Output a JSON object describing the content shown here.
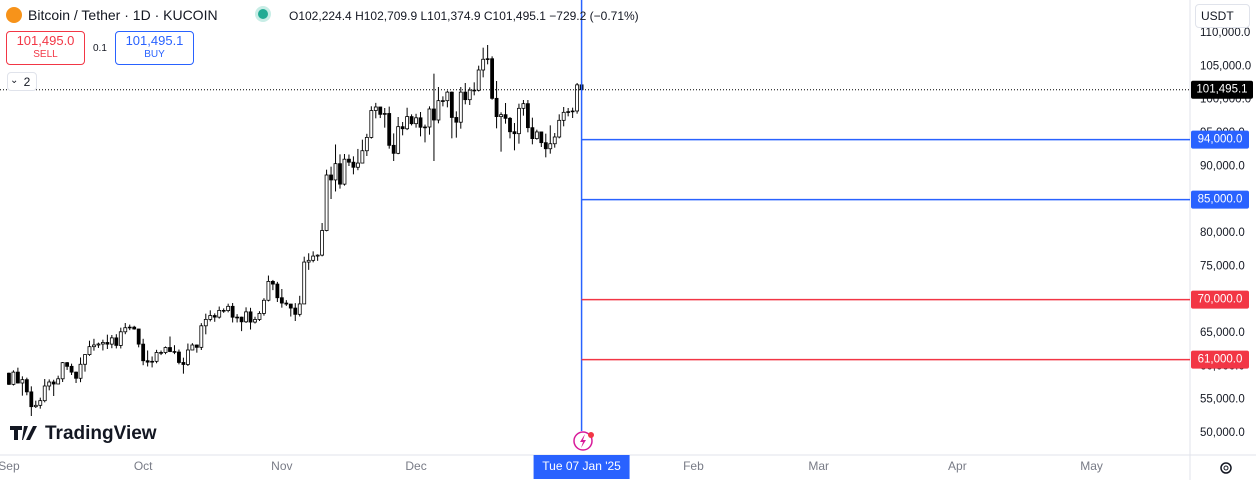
{
  "header": {
    "symbol": "Bitcoin / Tether · 1D · KUCOIN",
    "open": "O102,224.4",
    "high": "H102,709.9",
    "low": "L101,374.9",
    "close": "C101,495.1",
    "change": "−729.2 (−0.71%)",
    "sell_price": "101,495.0",
    "sell": "SELL",
    "quantity": "0.1",
    "buy_price": "101,495.1",
    "buy": "BUY",
    "indicators": "2",
    "currency": "USDT",
    "logo": "TradingView"
  },
  "chart_data": {
    "type": "candlestick",
    "up_color": "#ffffff",
    "down_color": "#000000",
    "wick_color": "#000000",
    "x": [
      "2024-09-01",
      "2024-09-02",
      "2024-09-03",
      "2024-09-04",
      "2024-09-05",
      "2024-09-06",
      "2024-09-07",
      "2024-09-08",
      "2024-09-09",
      "2024-09-10",
      "2024-09-11",
      "2024-09-12",
      "2024-09-13",
      "2024-09-14",
      "2024-09-15",
      "2024-09-16",
      "2024-09-17",
      "2024-09-18",
      "2024-09-19",
      "2024-09-20",
      "2024-09-21",
      "2024-09-22",
      "2024-09-23",
      "2024-09-24",
      "2024-09-25",
      "2024-09-26",
      "2024-09-27",
      "2024-09-28",
      "2024-09-29",
      "2024-09-30",
      "2024-10-01",
      "2024-10-02",
      "2024-10-03",
      "2024-10-04",
      "2024-10-05",
      "2024-10-06",
      "2024-10-07",
      "2024-10-08",
      "2024-10-09",
      "2024-10-10",
      "2024-10-11",
      "2024-10-12",
      "2024-10-13",
      "2024-10-14",
      "2024-10-15",
      "2024-10-16",
      "2024-10-17",
      "2024-10-18",
      "2024-10-19",
      "2024-10-20",
      "2024-10-21",
      "2024-10-22",
      "2024-10-23",
      "2024-10-24",
      "2024-10-25",
      "2024-10-26",
      "2024-10-27",
      "2024-10-28",
      "2024-10-29",
      "2024-10-30",
      "2024-10-31",
      "2024-11-01",
      "2024-11-02",
      "2024-11-03",
      "2024-11-04",
      "2024-11-05",
      "2024-11-06",
      "2024-11-07",
      "2024-11-08",
      "2024-11-09",
      "2024-11-10",
      "2024-11-11",
      "2024-11-12",
      "2024-11-13",
      "2024-11-14",
      "2024-11-15",
      "2024-11-16",
      "2024-11-17",
      "2024-11-18",
      "2024-11-19",
      "2024-11-20",
      "2024-11-21",
      "2024-11-22",
      "2024-11-23",
      "2024-11-24",
      "2024-11-25",
      "2024-11-26",
      "2024-11-27",
      "2024-11-28",
      "2024-11-29",
      "2024-11-30",
      "2024-12-01",
      "2024-12-02",
      "2024-12-03",
      "2024-12-04",
      "2024-12-05",
      "2024-12-06",
      "2024-12-07",
      "2024-12-08",
      "2024-12-09",
      "2024-12-10",
      "2024-12-11",
      "2024-12-12",
      "2024-12-13",
      "2024-12-14",
      "2024-12-15",
      "2024-12-16",
      "2024-12-17",
      "2024-12-18",
      "2024-12-19",
      "2024-12-20",
      "2024-12-21",
      "2024-12-22",
      "2024-12-23",
      "2024-12-24",
      "2024-12-25",
      "2024-12-26",
      "2024-12-27",
      "2024-12-28",
      "2024-12-29",
      "2024-12-30",
      "2024-12-31",
      "2025-01-01",
      "2025-01-02",
      "2025-01-03",
      "2025-01-04",
      "2025-01-05",
      "2025-01-06",
      "2025-01-07"
    ],
    "open": [
      58970,
      57300,
      59130,
      57500,
      58000,
      56170,
      53950,
      54150,
      54850,
      57050,
      57650,
      57350,
      58130,
      60550,
      60000,
      59130,
      58210,
      60310,
      61760,
      62950,
      63200,
      63350,
      63580,
      63330,
      64270,
      63140,
      65180,
      65790,
      65880,
      65600,
      63330,
      60840,
      60630,
      60750,
      62080,
      62070,
      62820,
      62220,
      62140,
      60580,
      60280,
      62450,
      63200,
      62850,
      66080,
      67040,
      67620,
      67380,
      68390,
      68360,
      69000,
      67370,
      67380,
      66680,
      68170,
      66640,
      67030,
      67940,
      69910,
      72740,
      72340,
      70290,
      69490,
      69340,
      68740,
      67800,
      69360,
      75640,
      75900,
      76540,
      76680,
      80370,
      88700,
      87960,
      90400,
      87330,
      91070,
      90620,
      89860,
      90490,
      92340,
      94340,
      98370,
      98900,
      97800,
      97930,
      93150,
      91950,
      95950,
      95640,
      97460,
      96400,
      97280,
      95860,
      95900,
      98600,
      96950,
      99850,
      99850,
      101130,
      97330,
      96620,
      101130,
      100000,
      101430,
      101400,
      104450,
      106060,
      106140,
      100200,
      97460,
      97750,
      97200,
      95190,
      94900,
      98700,
      99400,
      95800,
      94160,
      95160,
      93550,
      92640,
      93390,
      94400,
      96900,
      98100,
      98200,
      98300,
      102224.4
    ],
    "high": [
      59060,
      59400,
      59800,
      58500,
      58300,
      57000,
      54850,
      55300,
      58100,
      58040,
      57990,
      58600,
      60650,
      60650,
      60400,
      59210,
      61330,
      61790,
      63850,
      64130,
      63560,
      64000,
      64750,
      64700,
      64820,
      65800,
      66500,
      66260,
      66080,
      65630,
      64130,
      62380,
      61480,
      62480,
      62370,
      62980,
      64470,
      63170,
      62520,
      61300,
      63420,
      63480,
      63280,
      66480,
      67900,
      68400,
      67940,
      68970,
      68690,
      69400,
      69500,
      67830,
      67450,
      68850,
      68780,
      67440,
      68270,
      70220,
      73620,
      72960,
      72670,
      71600,
      69930,
      69390,
      69480,
      70580,
      76450,
      76960,
      77250,
      76800,
      81500,
      89500,
      89950,
      93280,
      91800,
      91850,
      91770,
      91500,
      92610,
      94000,
      94880,
      99010,
      99520,
      98920,
      98750,
      98960,
      94940,
      97400,
      96650,
      98790,
      97800,
      97880,
      98150,
      96250,
      99000,
      103900,
      101900,
      100500,
      101350,
      101230,
      98250,
      101900,
      102500,
      101850,
      102600,
      105100,
      107800,
      108200,
      106500,
      102800,
      98100,
      99500,
      97400,
      96500,
      99400,
      99950,
      99950,
      97300,
      95500,
      95200,
      94900,
      96150,
      95000,
      97800,
      98900,
      98750,
      98800,
      102500,
      102709.9
    ],
    "low": [
      57200,
      57130,
      57420,
      55600,
      55660,
      52550,
      53750,
      53650,
      54600,
      56400,
      55550,
      57320,
      57650,
      59460,
      58700,
      57500,
      57620,
      59200,
      61570,
      62350,
      62760,
      62380,
      62600,
      62720,
      62690,
      62680,
      64820,
      65430,
      65500,
      62850,
      60170,
      59980,
      59840,
      60460,
      61690,
      61820,
      62130,
      61830,
      60300,
      58900,
      60050,
      62450,
      62050,
      62450,
      64800,
      66740,
      66680,
      67160,
      68020,
      68100,
      66580,
      66580,
      65280,
      66500,
      65520,
      66430,
      66800,
      67600,
      69740,
      71430,
      69650,
      68800,
      69060,
      67470,
      66800,
      67480,
      69340,
      74470,
      75600,
      75830,
      76500,
      80250,
      85100,
      86230,
      86650,
      87110,
      90050,
      88800,
      89420,
      90450,
      91550,
      94160,
      97200,
      97240,
      95800,
      92650,
      90800,
      91820,
      94650,
      95440,
      96140,
      95800,
      94500,
      93600,
      94750,
      90800,
      96450,
      99000,
      98850,
      94200,
      94300,
      95650,
      99300,
      99200,
      100650,
      101230,
      103350,
      105300,
      100000,
      95700,
      92200,
      96400,
      94200,
      92400,
      93400,
      97600,
      95100,
      93300,
      94000,
      92900,
      91350,
      91900,
      92800,
      94200,
      96000,
      97500,
      97250,
      97900,
      101374.9
    ],
    "close": [
      57300,
      59130,
      57500,
      58000,
      56170,
      53950,
      54150,
      54850,
      57050,
      57650,
      57350,
      58130,
      60550,
      60000,
      59130,
      58210,
      60310,
      61760,
      62950,
      63200,
      63350,
      63580,
      63330,
      64270,
      63140,
      65180,
      65790,
      65880,
      65600,
      63330,
      60840,
      60630,
      60750,
      62080,
      62070,
      62820,
      62220,
      62140,
      60580,
      60280,
      62450,
      63200,
      62850,
      66080,
      67040,
      67620,
      67380,
      68390,
      68360,
      69000,
      67370,
      67380,
      66680,
      68170,
      66640,
      67030,
      67940,
      69910,
      72740,
      72340,
      70290,
      69490,
      69340,
      68740,
      67800,
      69360,
      75640,
      75900,
      76540,
      76680,
      80370,
      88700,
      87960,
      90400,
      87330,
      91070,
      90620,
      89860,
      90490,
      92340,
      94340,
      98370,
      98900,
      97800,
      97930,
      93150,
      91950,
      95950,
      95640,
      97460,
      96400,
      97280,
      95860,
      95900,
      98600,
      96950,
      99850,
      99850,
      101130,
      97330,
      96620,
      101130,
      100000,
      101430,
      101400,
      104450,
      106060,
      106140,
      100200,
      97460,
      97750,
      97200,
      95190,
      94900,
      98700,
      99400,
      95800,
      94160,
      95160,
      93550,
      92640,
      93390,
      94400,
      96900,
      98100,
      98200,
      98300,
      102224.4,
      101495.1
    ],
    "xlim": [
      "2024-08-30",
      "2025-05-23"
    ],
    "xticks": [
      {
        "value": "2024-09-01",
        "label": "Sep"
      },
      {
        "value": "2024-10-01",
        "label": "Oct"
      },
      {
        "value": "2024-11-01",
        "label": "Nov"
      },
      {
        "value": "2024-12-01",
        "label": "Dec"
      },
      {
        "value": "2025-02-01",
        "label": "Feb"
      },
      {
        "value": "2025-03-01",
        "label": "Mar"
      },
      {
        "value": "2025-04-01",
        "label": "Apr"
      },
      {
        "value": "2025-05-01",
        "label": "May"
      }
    ],
    "ylim": [
      47150,
      114950
    ],
    "yticks": [
      {
        "value": 50000,
        "label": "50,000.0"
      },
      {
        "value": 55000,
        "label": "55,000.0"
      },
      {
        "value": 60000,
        "label": "60,000.0"
      },
      {
        "value": 65000,
        "label": "65,000.0"
      },
      {
        "value": 70000,
        "label": "70,000.0"
      },
      {
        "value": 75000,
        "label": "75,000.0"
      },
      {
        "value": 80000,
        "label": "80,000.0"
      },
      {
        "value": 85000,
        "label": "85,000.0"
      },
      {
        "value": 90000,
        "label": "90,000.0"
      },
      {
        "value": 95000,
        "label": "95,000.0"
      },
      {
        "value": 100000,
        "label": "100,000.0"
      },
      {
        "value": 105000,
        "label": "105,000.0"
      },
      {
        "value": 110000,
        "label": "110,000.0"
      }
    ],
    "grid": false,
    "price_lines": [
      {
        "value": 94000,
        "label": "94,000.0",
        "color": "#2962ff"
      },
      {
        "value": 85000,
        "label": "85,000.0",
        "color": "#2962ff"
      },
      {
        "value": 70000,
        "label": "70,000.0",
        "color": "#f23645"
      },
      {
        "value": 61000,
        "label": "61,000.0",
        "color": "#f23645"
      }
    ],
    "last_price": {
      "value": 101495.1,
      "label": "101,495.1",
      "color": "#000000"
    },
    "crosshair": {
      "x": "2025-01-07",
      "label": "Tue 07 Jan '25",
      "color": "#2962ff"
    }
  }
}
